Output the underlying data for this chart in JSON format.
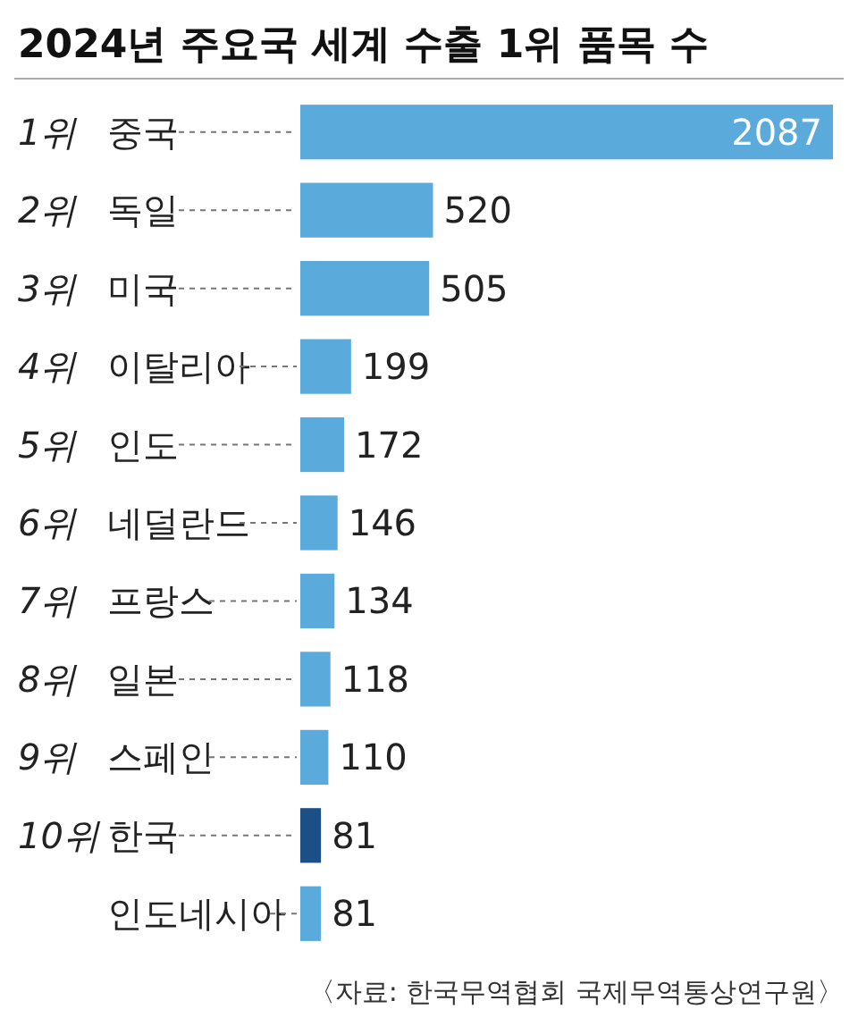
{
  "chart_data": {
    "type": "bar",
    "orientation": "horizontal",
    "title": "2024년 주요국 세계 수출 1위 품목 수",
    "categories": [
      "1위 중국",
      "2위 독일",
      "3위 미국",
      "4위 이탈리아",
      "5위 인도",
      "6위 네덜란드",
      "7위 프랑스",
      "8위 일본",
      "9위 스페인",
      "10위 한국",
      "인도네시아"
    ],
    "values": [
      2087,
      520,
      505,
      199,
      172,
      146,
      134,
      118,
      110,
      81,
      81
    ],
    "colors": [
      "#5aaadc",
      "#5aaadc",
      "#5aaadc",
      "#5aaadc",
      "#5aaadc",
      "#5aaadc",
      "#5aaadc",
      "#5aaadc",
      "#5aaadc",
      "#1b4f85",
      "#5aaadc"
    ],
    "data_labels": true,
    "annotations": [
      "〈자료: 한국무역협회 국제무역통상연구원〉"
    ]
  }
}
